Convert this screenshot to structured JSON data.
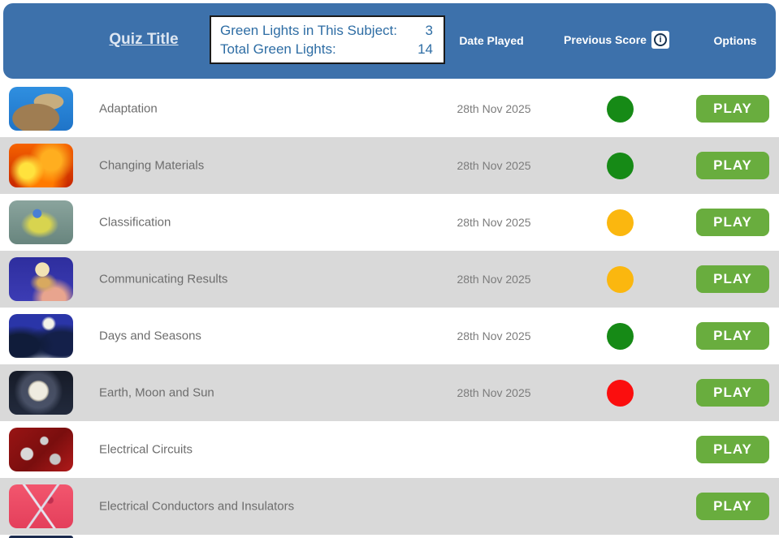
{
  "header": {
    "quiz_title": "Quiz Title",
    "summary": {
      "line1_label": "Green Lights in This Subject:",
      "line1_value": "3",
      "line2_label": "Total Green Lights:",
      "line2_value": "14"
    },
    "columns": {
      "date_played": "Date Played",
      "previous_score": "Previous Score",
      "options": "Options"
    },
    "info_icon_glyph": "i"
  },
  "play_label": "PLAY",
  "colors": {
    "header_blue": "#3d71ab",
    "row_alt_gray": "#d9d9d9",
    "play_green": "#69ad3e",
    "dot_green": "#168a16",
    "dot_amber": "#fbb70f",
    "dot_red": "#fb0e0e"
  },
  "rows": [
    {
      "title": "Adaptation",
      "date": "28th Nov 2025",
      "status": "green",
      "dot_style": "background:#168a16",
      "thumb_name": "camel-photo",
      "thumb_style": "background:radial-gradient(ellipse 60% 55% at 42% 72%, #9f7d52 60%, rgba(159,125,82,0) 62%), radial-gradient(ellipse 38% 30% at 62% 34%, #c7ad7e 60%, rgba(199,173,126,0) 62%), linear-gradient(180deg, #2f8fe0 0%, #1f74c8 100%)"
    },
    {
      "title": "Changing Materials",
      "date": "28th Nov 2025",
      "status": "green",
      "dot_style": "background:#168a16",
      "thumb_name": "fire-photo",
      "thumb_style": "background:radial-gradient(circle at 28% 62%, #ffe23d 0 14%, rgba(255,226,61,0) 32%), radial-gradient(circle at 66% 38%, #ffae1f 0 20%, rgba(255,174,31,0) 45%), radial-gradient(circle at 50% 85%, #ff7a00 0 25%, rgba(255,122,0,0) 55%), linear-gradient(180deg, #f66300, #c62600)"
    },
    {
      "title": "Classification",
      "date": "28th Nov 2025",
      "status": "amber",
      "dot_style": "background:#fbb70f",
      "thumb_name": "blue-tit-bird-photo",
      "thumb_style": "background:radial-gradient(circle at 44% 30%, #4a7fd4 0 9%, rgba(74,127,212,0) 10%), radial-gradient(ellipse at 48% 55%, #d8d44f 0 22%, rgba(216,212,79,0) 40%), linear-gradient(180deg, #8aa49d, #68857e)"
    },
    {
      "title": "Communicating Results",
      "date": "28th Nov 2025",
      "status": "amber",
      "dot_style": "background:#fbb70f",
      "thumb_name": "ice-cream-photo",
      "thumb_style": "background:radial-gradient(circle at 52% 28%, #f2e3b4 0 15%, rgba(242,227,180,0) 16%), radial-gradient(ellipse at 54% 58%, #d8a95f 0 12%, rgba(216,169,95,0) 28%), radial-gradient(ellipse at 70% 94%, #e8a48e 0 18%, rgba(232,164,142,0) 35%), linear-gradient(180deg, #2e2e9e, #3c3cb4)"
    },
    {
      "title": "Days and Seasons",
      "date": "28th Nov 2025",
      "status": "green",
      "dot_style": "background:#168a16",
      "thumb_name": "winter-night-photo",
      "thumb_style": "background:radial-gradient(circle at 62% 22%, #f2f2e8 0 9%, rgba(242,242,232,0) 14%), radial-gradient(ellipse at 18% 72%, #101c3a 0 25%, rgba(16,28,58,0) 45%), radial-gradient(ellipse at 82% 68%, #14204a 0 28%, rgba(20,32,74,0) 48%), linear-gradient(180deg, #2a35a8 0 45%, #3a4fa8 65%, #aebade 88%, #e8edf8 100%)"
    },
    {
      "title": "Earth, Moon and Sun",
      "date": "28th Nov 2025",
      "status": "red",
      "dot_style": "background:#fb0e0e",
      "thumb_name": "moon-photo",
      "thumb_style": "background:radial-gradient(circle at 46% 46%, #efece0 0 20%, #b9b4a6 23%, rgba(185,180,166,0) 26%), radial-gradient(circle at 46% 46%, rgba(150,160,190,0.35) 0 40%, rgba(150,160,190,0) 58%), linear-gradient(180deg, #161b28, #222a3c)"
    },
    {
      "title": "Electrical Circuits",
      "date": "",
      "status": "none",
      "thumb_name": "tinsel-stars-photo",
      "thumb_style": "background:radial-gradient(circle at 28% 60%, #d9d9d9 0 11%, rgba(217,217,217,0) 13%), radial-gradient(circle at 55% 30%, #cfcfcf 0 8%, rgba(207,207,207,0) 10%), radial-gradient(circle at 72% 72%, #c6c6c6 0 9%, rgba(198,198,198,0) 11%), linear-gradient(135deg, #991414, #7a0e0e 55%, #b01a1a)"
    },
    {
      "title": "Electrical Conductors and Insulators",
      "date": "",
      "status": "none",
      "thumb_name": "scissors-photo",
      "thumb_style": "background:linear-gradient(55deg, rgba(255,255,255,0) 46%, #e6e6f0 47%, #e6e6f0 49%, rgba(255,255,255,0) 50%), linear-gradient(-55deg, rgba(255,255,255,0) 46%, #dcdce8 47%, #dcdce8 49%, rgba(255,255,255,0) 50%), radial-gradient(circle at 64% 36%, #c03050 0 6%, rgba(192,48,80,0) 8%), linear-gradient(180deg, #f2566e, #e43f5b)"
    }
  ]
}
